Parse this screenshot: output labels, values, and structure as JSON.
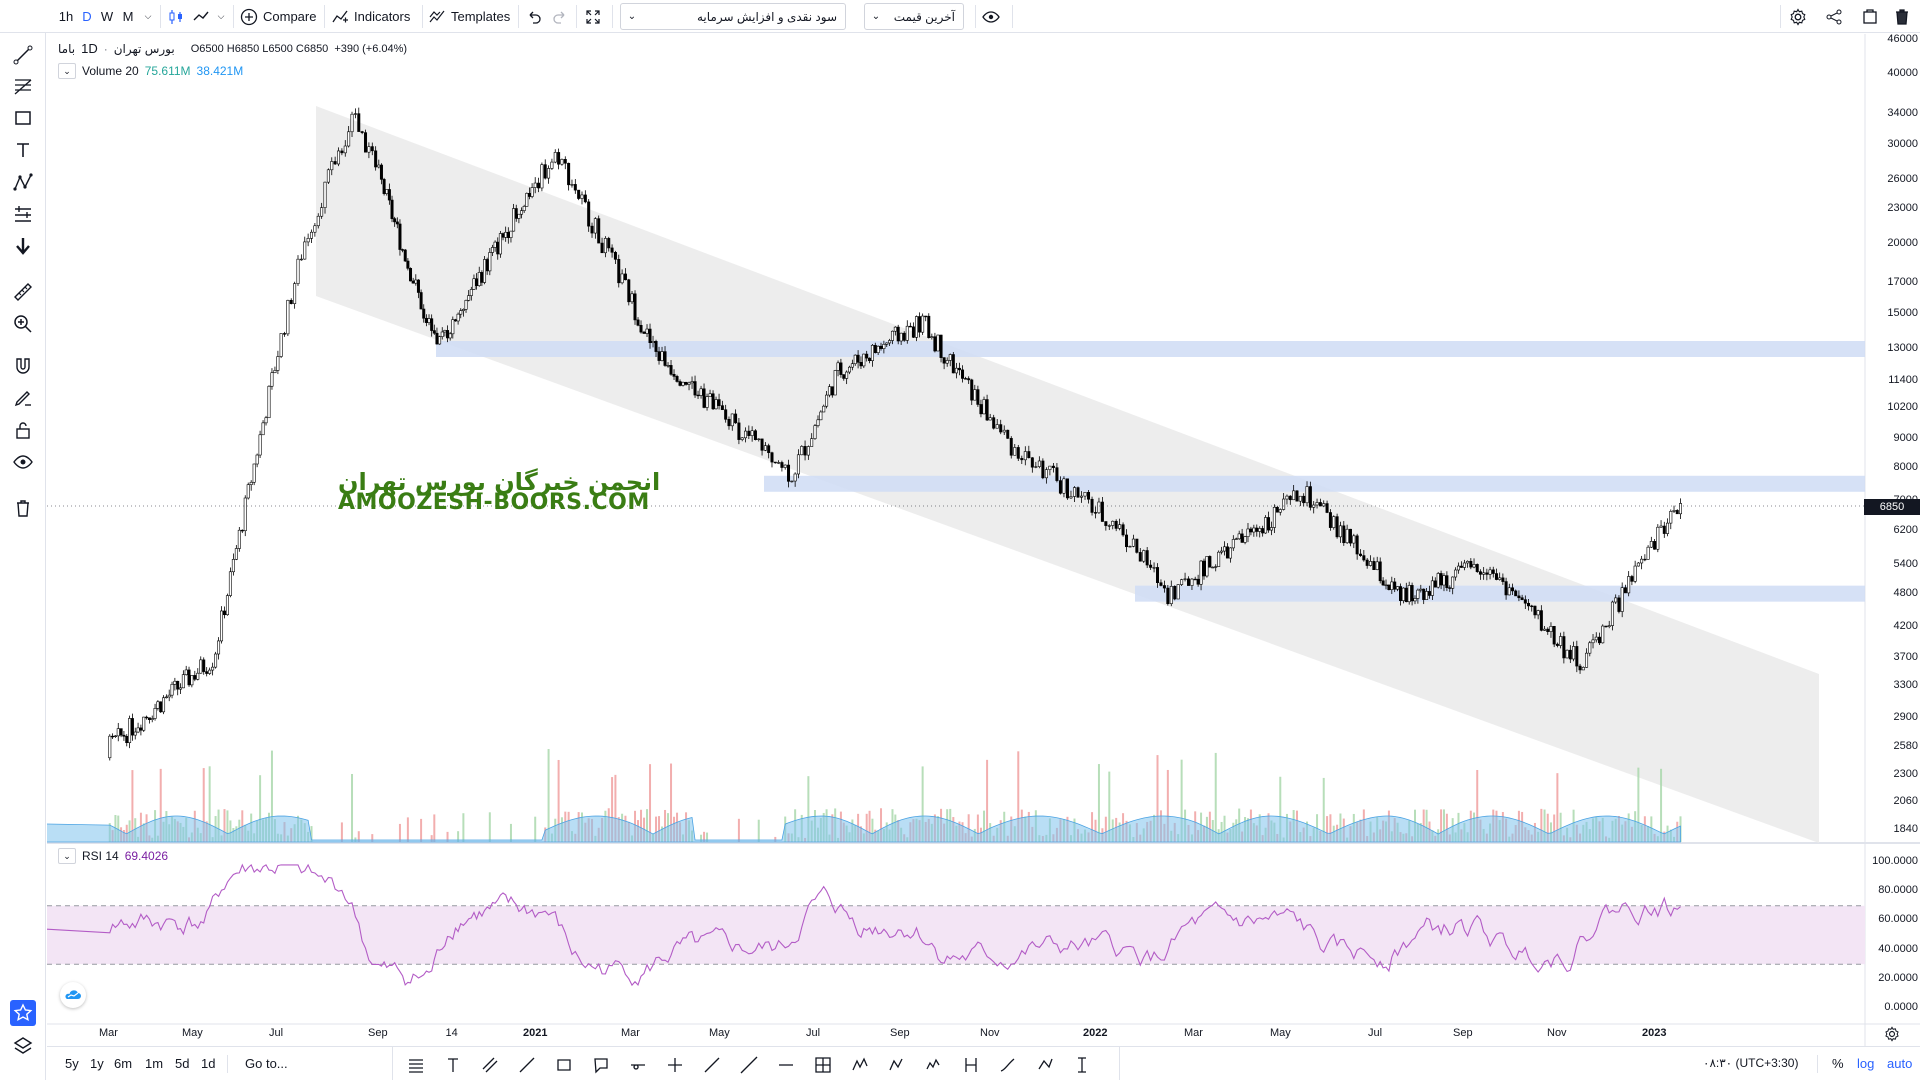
{
  "toolbar": {
    "intervals": [
      "1h",
      "D",
      "W",
      "M"
    ],
    "active_interval": "D",
    "compare_label": "Compare",
    "indicators_label": "Indicators",
    "templates_label": "Templates",
    "indicator_dropdown": "سود نقدی و افزایش سرمایه",
    "price_dropdown": "آخرین قیمت"
  },
  "legend": {
    "symbol": "باما",
    "interval": "1D",
    "exchange": "بورس تهران",
    "ohlc": "O6500 H6850 L6500 C6850",
    "change": "+390 (+6.04%)",
    "volume_label": "Volume 20",
    "volume_value_1": "75.611M",
    "volume_value_2": "38.421M",
    "rsi_label": "RSI 14",
    "rsi_value": "69.4026"
  },
  "watermark": {
    "persian": "انجمن خبرگان بورس تهران",
    "english": "AMOOZESH-BOORS.COM"
  },
  "price_scale": {
    "ticks": [
      "46000",
      "40000",
      "34000",
      "30000",
      "26000",
      "23000",
      "20000",
      "17000",
      "15000",
      "13000",
      "11400",
      "10200",
      "9000",
      "8000",
      "7000",
      "6200",
      "5400",
      "4800",
      "4200",
      "3700",
      "3300",
      "2900",
      "2580",
      "2300",
      "2060",
      "1840"
    ],
    "current_price": "6850"
  },
  "rsi_scale": {
    "ticks": [
      "100.0000",
      "80.0000",
      "60.0000",
      "40.0000",
      "20.0000",
      "0.0000"
    ]
  },
  "time_axis": {
    "labels": [
      "Mar",
      "May",
      "Jul",
      "Sep",
      "14",
      "2021",
      "Mar",
      "May",
      "Jul",
      "Sep",
      "Nov",
      "2022",
      "Mar",
      "May",
      "Jul",
      "Sep",
      "Nov",
      "2023"
    ]
  },
  "bottom": {
    "ranges": [
      "5y",
      "1y",
      "6m",
      "1m",
      "5d",
      "1d"
    ],
    "goto_label": "Go to...",
    "time_display": "۰۸:۳۰ (UTC+3:30)",
    "percent_label": "%",
    "log_label": "log",
    "auto_label": "auto"
  },
  "colors": {
    "accent": "#2962ff",
    "candle": "#000000",
    "channel_fill": "#ebebeb",
    "zone_fill": "#cfdcf5",
    "rsi_line": "#b35cc6",
    "rsi_band": "#f3e5f5",
    "volume_area": "#7fc3ec",
    "vol_up": "#a5d6a7",
    "vol_down": "#ef9a9a",
    "watermark": "#3a7d14",
    "volume_text_1": "#26a69a",
    "volume_text_2": "#2196f3",
    "rsi_value_text": "#7b1fa2"
  },
  "chart_data": {
    "type": "candlestick",
    "symbol": "باما",
    "approx_close_path": [
      {
        "date": "2020-02",
        "close": 2400
      },
      {
        "date": "2020-05",
        "close": 3700
      },
      {
        "date": "2020-07",
        "close": 20000
      },
      {
        "date": "2020-08",
        "close": 34000
      },
      {
        "date": "2020-10",
        "close": 13000
      },
      {
        "date": "2021-01",
        "close": 29000
      },
      {
        "date": "2021-03",
        "close": 13000
      },
      {
        "date": "2021-06",
        "close": 7800
      },
      {
        "date": "2021-07",
        "close": 11800
      },
      {
        "date": "2021-09",
        "close": 14500
      },
      {
        "date": "2021-11",
        "close": 8600
      },
      {
        "date": "2022-01",
        "close": 6300
      },
      {
        "date": "2022-02",
        "close": 4800
      },
      {
        "date": "2022-05",
        "close": 7200
      },
      {
        "date": "2022-07",
        "close": 4700
      },
      {
        "date": "2022-09",
        "close": 5400
      },
      {
        "date": "2022-11",
        "close": 3600
      },
      {
        "date": "2023-01",
        "close": 6850
      }
    ],
    "price_zones": [
      13000,
      7500,
      4800
    ],
    "rsi_levels": [
      70,
      30
    ],
    "rsi_last": 69.4026
  }
}
